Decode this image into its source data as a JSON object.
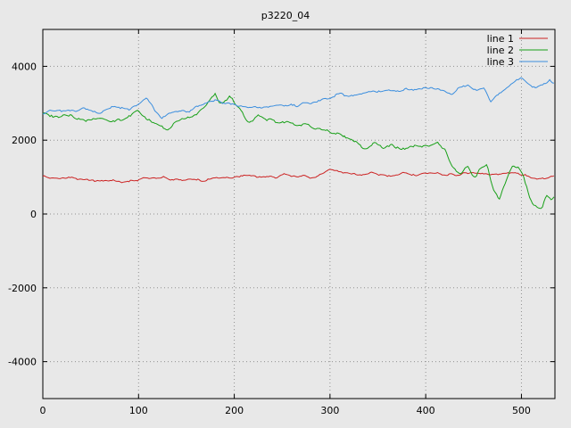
{
  "chart_data": {
    "type": "line",
    "title": "p3220_04",
    "xlabel": "",
    "ylabel": "",
    "xlim": [
      0,
      535
    ],
    "ylim": [
      -5000,
      5000
    ],
    "xticks": [
      0,
      100,
      200,
      300,
      400,
      500
    ],
    "yticks": [
      -4000,
      -2000,
      0,
      2000,
      4000
    ],
    "grid": "dotted",
    "legend_position": "top-right-inside",
    "background": "#e8e8e8",
    "grid_color": "#909090",
    "border_color": "#000000",
    "series": [
      {
        "name": "line 1",
        "color": "#cc2222",
        "noise_amplitude": 45,
        "keypoints": [
          [
            0,
            1020
          ],
          [
            15,
            950
          ],
          [
            30,
            980
          ],
          [
            45,
            900
          ],
          [
            60,
            870
          ],
          [
            75,
            900
          ],
          [
            90,
            860
          ],
          [
            105,
            980
          ],
          [
            120,
            1000
          ],
          [
            135,
            930
          ],
          [
            150,
            950
          ],
          [
            165,
            900
          ],
          [
            180,
            980
          ],
          [
            195,
            1000
          ],
          [
            210,
            1060
          ],
          [
            225,
            1030
          ],
          [
            240,
            1000
          ],
          [
            255,
            1070
          ],
          [
            270,
            1020
          ],
          [
            285,
            1000
          ],
          [
            300,
            1220
          ],
          [
            315,
            1100
          ],
          [
            330,
            1070
          ],
          [
            345,
            1120
          ],
          [
            360,
            1050
          ],
          [
            375,
            1100
          ],
          [
            390,
            1080
          ],
          [
            405,
            1120
          ],
          [
            420,
            1050
          ],
          [
            435,
            1080
          ],
          [
            450,
            1100
          ],
          [
            465,
            1050
          ],
          [
            480,
            1120
          ],
          [
            495,
            1080
          ],
          [
            510,
            1000
          ],
          [
            525,
            950
          ],
          [
            535,
            1060
          ]
        ]
      },
      {
        "name": "line 2",
        "color": "#18a018",
        "noise_amplitude": 70,
        "keypoints": [
          [
            0,
            2720
          ],
          [
            15,
            2600
          ],
          [
            30,
            2650
          ],
          [
            45,
            2500
          ],
          [
            60,
            2620
          ],
          [
            75,
            2480
          ],
          [
            90,
            2700
          ],
          [
            100,
            2780
          ],
          [
            110,
            2560
          ],
          [
            120,
            2400
          ],
          [
            130,
            2280
          ],
          [
            140,
            2500
          ],
          [
            150,
            2550
          ],
          [
            160,
            2700
          ],
          [
            170,
            2950
          ],
          [
            180,
            3230
          ],
          [
            185,
            3000
          ],
          [
            195,
            3150
          ],
          [
            205,
            2850
          ],
          [
            215,
            2450
          ],
          [
            225,
            2650
          ],
          [
            235,
            2550
          ],
          [
            245,
            2500
          ],
          [
            255,
            2480
          ],
          [
            265,
            2350
          ],
          [
            275,
            2400
          ],
          [
            285,
            2300
          ],
          [
            295,
            2250
          ],
          [
            305,
            2150
          ],
          [
            315,
            2100
          ],
          [
            325,
            1950
          ],
          [
            335,
            1780
          ],
          [
            345,
            1900
          ],
          [
            355,
            1820
          ],
          [
            365,
            1880
          ],
          [
            375,
            1780
          ],
          [
            385,
            1850
          ],
          [
            395,
            1780
          ],
          [
            405,
            1850
          ],
          [
            412,
            1950
          ],
          [
            420,
            1700
          ],
          [
            428,
            1250
          ],
          [
            436,
            1100
          ],
          [
            444,
            1250
          ],
          [
            452,
            950
          ],
          [
            458,
            1250
          ],
          [
            464,
            1350
          ],
          [
            470,
            700
          ],
          [
            477,
            400
          ],
          [
            483,
            800
          ],
          [
            490,
            1350
          ],
          [
            497,
            1250
          ],
          [
            503,
            1000
          ],
          [
            509,
            400
          ],
          [
            515,
            200
          ],
          [
            521,
            120
          ],
          [
            526,
            550
          ],
          [
            531,
            400
          ],
          [
            535,
            520
          ]
        ]
      },
      {
        "name": "line 3",
        "color": "#3b8ede",
        "noise_amplitude": 55,
        "keypoints": [
          [
            0,
            2760
          ],
          [
            15,
            2820
          ],
          [
            30,
            2780
          ],
          [
            45,
            2850
          ],
          [
            60,
            2750
          ],
          [
            75,
            2880
          ],
          [
            90,
            2820
          ],
          [
            100,
            2950
          ],
          [
            108,
            3120
          ],
          [
            116,
            2850
          ],
          [
            124,
            2580
          ],
          [
            132,
            2700
          ],
          [
            140,
            2820
          ],
          [
            150,
            2750
          ],
          [
            160,
            2900
          ],
          [
            170,
            3000
          ],
          [
            180,
            3080
          ],
          [
            190,
            3020
          ],
          [
            200,
            2920
          ],
          [
            210,
            2870
          ],
          [
            220,
            2900
          ],
          [
            230,
            2850
          ],
          [
            240,
            2920
          ],
          [
            250,
            2950
          ],
          [
            260,
            2930
          ],
          [
            270,
            2980
          ],
          [
            280,
            3000
          ],
          [
            290,
            3050
          ],
          [
            300,
            3120
          ],
          [
            310,
            3260
          ],
          [
            320,
            3180
          ],
          [
            330,
            3250
          ],
          [
            340,
            3300
          ],
          [
            350,
            3280
          ],
          [
            360,
            3350
          ],
          [
            370,
            3300
          ],
          [
            380,
            3400
          ],
          [
            390,
            3380
          ],
          [
            400,
            3460
          ],
          [
            410,
            3380
          ],
          [
            420,
            3300
          ],
          [
            428,
            3250
          ],
          [
            436,
            3420
          ],
          [
            444,
            3480
          ],
          [
            452,
            3380
          ],
          [
            460,
            3420
          ],
          [
            468,
            3050
          ],
          [
            476,
            3250
          ],
          [
            484,
            3400
          ],
          [
            492,
            3550
          ],
          [
            500,
            3700
          ],
          [
            508,
            3520
          ],
          [
            516,
            3420
          ],
          [
            524,
            3500
          ],
          [
            530,
            3620
          ],
          [
            535,
            3500
          ]
        ]
      }
    ]
  }
}
